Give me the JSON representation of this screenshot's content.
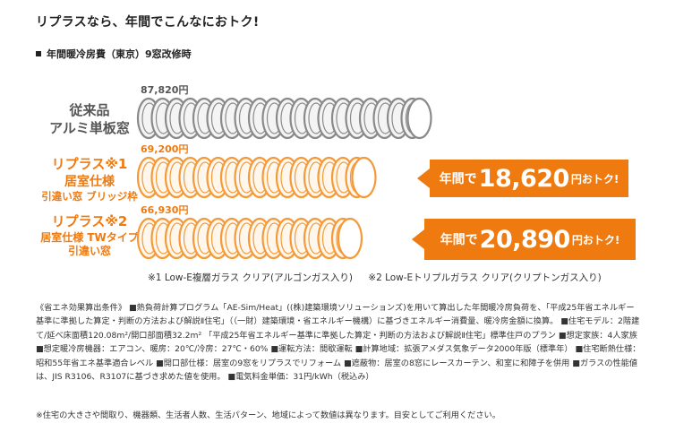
{
  "headline": "リプラスなら、年間でこんなにおトク!",
  "subhead": "年間暖冷房費（東京）9窓改修時",
  "rows": [
    {
      "label_lines": [
        "従来品",
        "アルミ単板窓"
      ],
      "price": "87,820円",
      "color": "gray",
      "coins": 20
    },
    {
      "label_lines": [
        "リプラス※1",
        "居室仕様",
        "引違い窓 ブリッジ枠"
      ],
      "price": "69,200円",
      "color": "orange",
      "coins": 16,
      "badge": {
        "pre": "年間で",
        "amount": "18,620",
        "suffix": "円おトク!"
      }
    },
    {
      "label_lines": [
        "リプラス※2",
        "居室仕様 TWタイプ",
        "引違い窓"
      ],
      "price": "66,930円",
      "color": "orange",
      "coins": 15,
      "badge": {
        "pre": "年間で",
        "amount": "20,890",
        "suffix": "円おトク!"
      }
    }
  ],
  "footnotes": [
    "※1 Low-E複層ガラス クリア(アルゴンガス入り)",
    "※2 Low-Eトリプルガラス クリア(クリプトンガス入り)"
  ],
  "conditions": "《省エネ効果算出条件》 ■熱負荷計算プログラム「AE-Sim/Heat」((株)建築環境ソリューションズ)を用いて算出した年間暖冷房負荷を、「平成25年省エネルギー基準に準拠した算定・判断の方法および解説Ⅱ住宅」（（一財）建築環境・省エネルギー機構）に基づきエネルギー消費量、暖冷房金額に換算。 ■住宅モデル：2階建て/延べ床面積120.08m²/開口部面積32.2m² 「平成25年省エネルギー基準に準拠した算定・判断の方法および解説Ⅱ住宅」標準住戸のプラン ■想定家族：4人家族 ■想定暖冷房機器：エアコン、暖房：20℃/冷房：27℃・60% ■運転方法：間歇運転 ■計算地域：拡張アメダス気象データ2000年版（標準年） ■住宅断熱仕様：昭和55年省エネ基準適合レベル ■開口部仕様：居室の9窓をリプラスでリフォーム ■遮蔽物：居室の8窓にレースカーテン、和室に和障子を併用 ■ガラスの性能値は、JIS R3106、R3107に基づき求めた値を使用。 ■電気料金単価：31円/kWh（税込み）",
  "note": "※住宅の大きさや間取り、機器類、生活者人数、生活パターン、地域によって数値は異なります。目安としてご利用ください。",
  "colors": {
    "accent": "#ee7a10",
    "coin_gray": "#8a8a8a",
    "coin_orange": "#f39a3a"
  }
}
